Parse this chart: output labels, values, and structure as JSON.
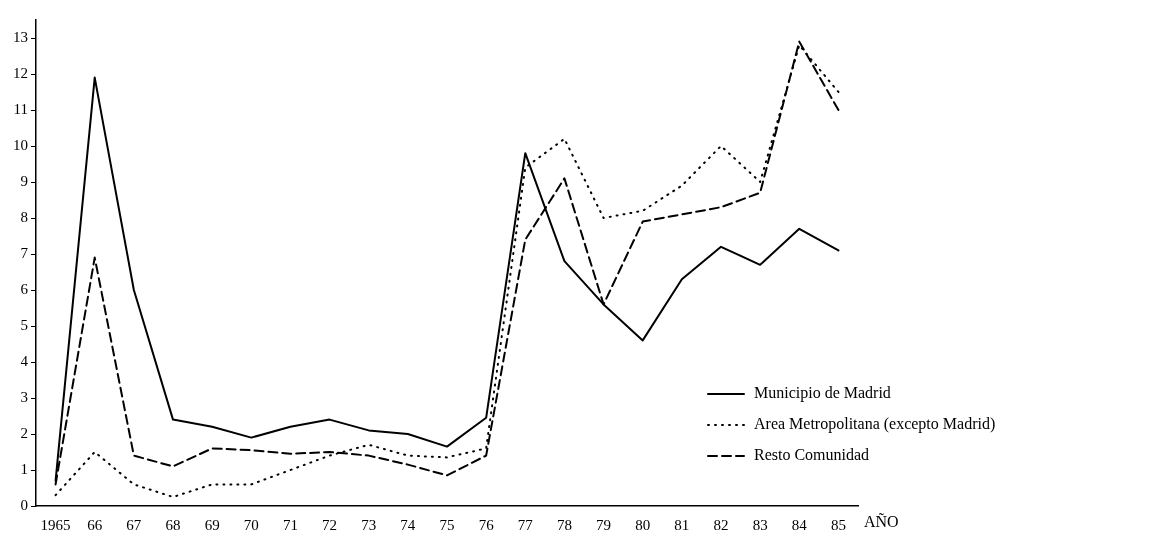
{
  "chart_data": {
    "type": "line",
    "xlabel": "AÑO",
    "categories": [
      "1965",
      "66",
      "67",
      "68",
      "69",
      "70",
      "71",
      "72",
      "73",
      "74",
      "75",
      "76",
      "77",
      "78",
      "79",
      "80",
      "81",
      "82",
      "83",
      "84",
      "85"
    ],
    "series": [
      {
        "name": "Municipio de Madrid",
        "color": "#000000",
        "line_style": "solid",
        "values": [
          0.7,
          11.9,
          6.0,
          2.4,
          2.2,
          1.9,
          2.2,
          2.4,
          2.1,
          2.0,
          1.65,
          2.45,
          9.8,
          6.8,
          5.6,
          4.6,
          6.3,
          7.2,
          6.7,
          7.7,
          7.1
        ]
      },
      {
        "name": "Area Metropolitana (excepto Madrid)",
        "color": "#000000",
        "line_style": "dotted",
        "values": [
          0.3,
          1.5,
          0.6,
          0.25,
          0.6,
          0.6,
          1.0,
          1.4,
          1.7,
          1.4,
          1.35,
          1.6,
          9.4,
          10.2,
          8.0,
          8.2,
          8.9,
          10.0,
          9.0,
          12.8,
          11.5
        ]
      },
      {
        "name": "Resto Comunidad",
        "color": "#000000",
        "line_style": "dashed",
        "values": [
          0.6,
          6.9,
          1.4,
          1.1,
          1.6,
          1.55,
          1.45,
          1.5,
          1.4,
          1.15,
          0.85,
          1.4,
          7.4,
          9.1,
          5.6,
          7.9,
          8.1,
          8.3,
          8.7,
          12.9,
          11.0
        ]
      }
    ],
    "ylim": [
      0,
      13.5
    ],
    "yticks": [
      0,
      1,
      2,
      3,
      4,
      5,
      6,
      7,
      8,
      9,
      10,
      11,
      12,
      13
    ],
    "grid": false,
    "legend": "bottom right",
    "marker": "none"
  }
}
